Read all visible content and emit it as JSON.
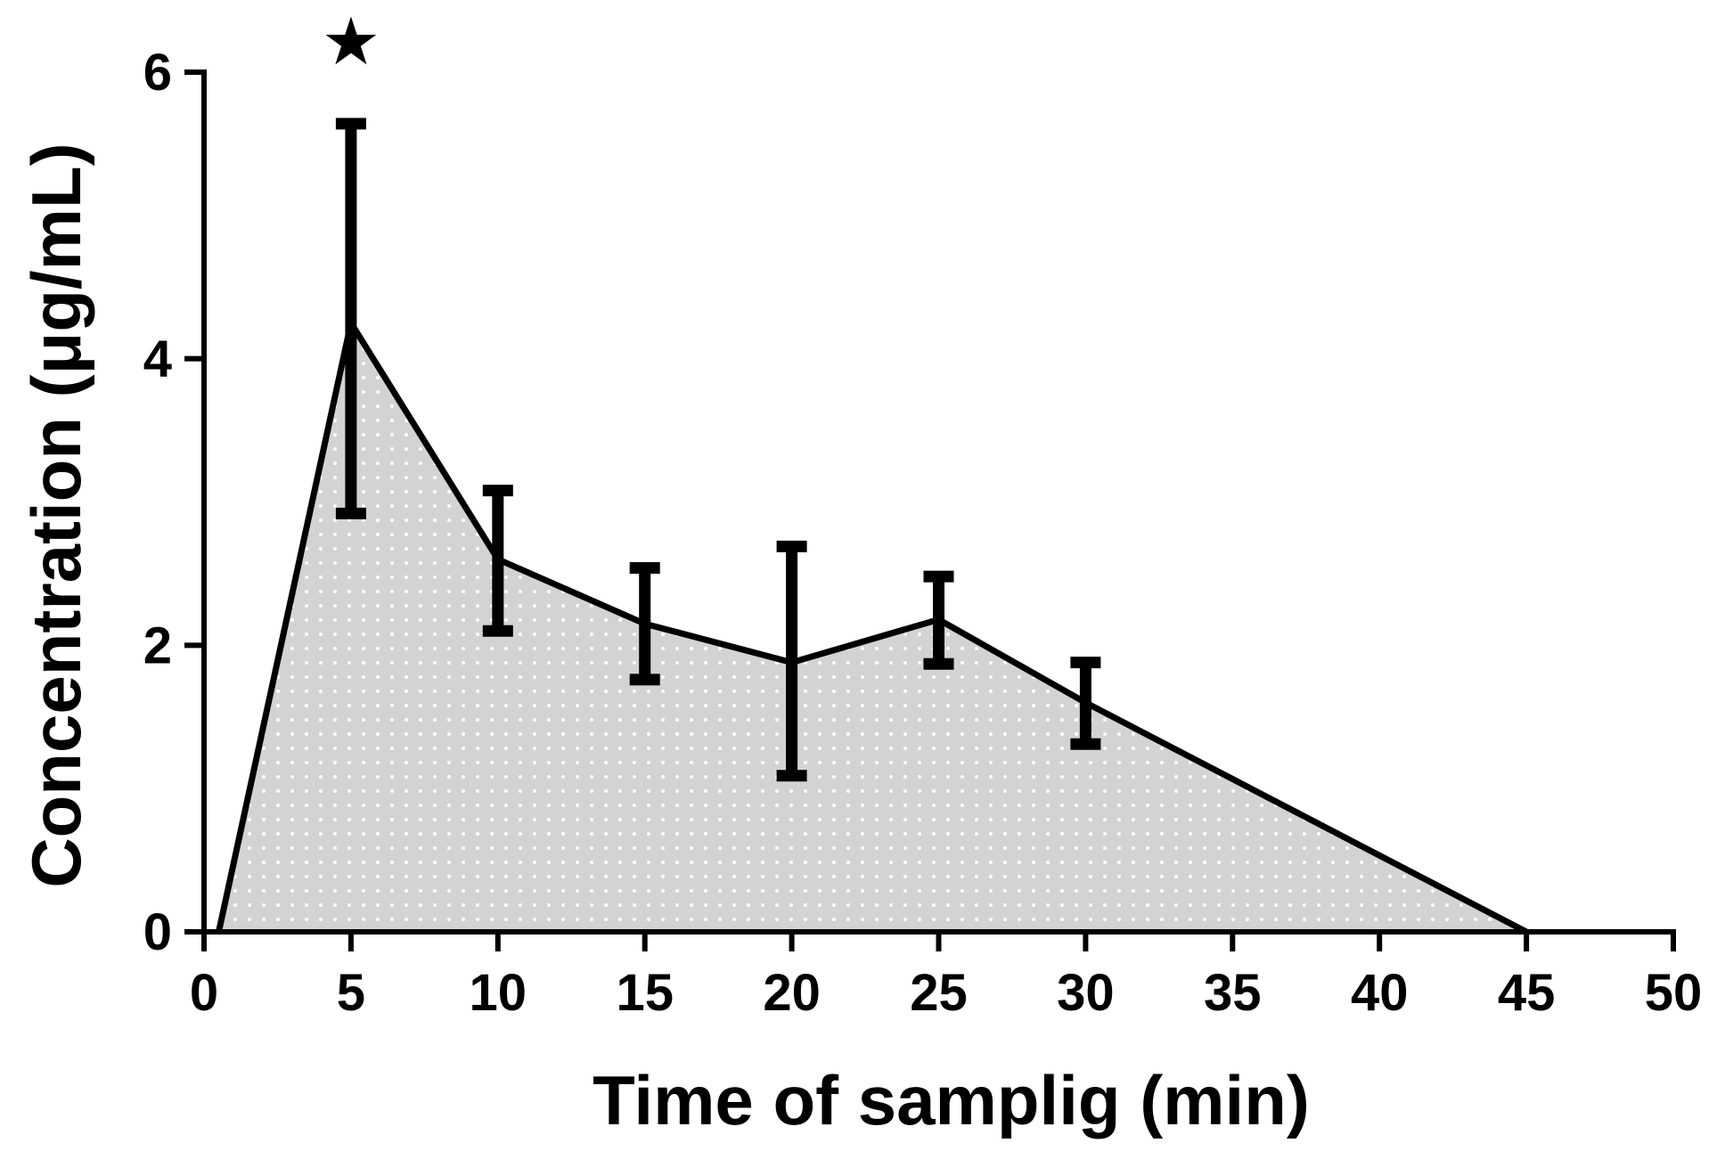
{
  "chart_data": {
    "type": "area",
    "title": "",
    "xlabel": "Time of samplig (min)",
    "ylabel": "Concentration (μg/mL)",
    "xlim": [
      0,
      50
    ],
    "ylim": [
      0,
      6
    ],
    "xticks": [
      "0",
      "5",
      "10",
      "15",
      "20",
      "25",
      "30",
      "35",
      "40",
      "45",
      "50"
    ],
    "yticks": [
      "0",
      "2",
      "4",
      "6"
    ],
    "grid": false,
    "legend": "none",
    "series": [
      {
        "x": [
          0.5,
          5,
          10,
          15,
          20,
          25,
          30,
          45
        ],
        "y": [
          0,
          4.25,
          2.6,
          2.15,
          1.88,
          2.18,
          1.6,
          0
        ],
        "y_lower": [
          null,
          2.92,
          2.1,
          1.76,
          1.09,
          1.87,
          1.31,
          null
        ],
        "y_upper": [
          null,
          5.64,
          3.08,
          2.54,
          2.69,
          2.48,
          1.88,
          null
        ]
      }
    ],
    "annotations": [
      {
        "text": "★",
        "x": 5
      }
    ],
    "colors": {
      "line": "#000000",
      "fill": "#d3d3d3",
      "dots": "#ffffff"
    }
  }
}
